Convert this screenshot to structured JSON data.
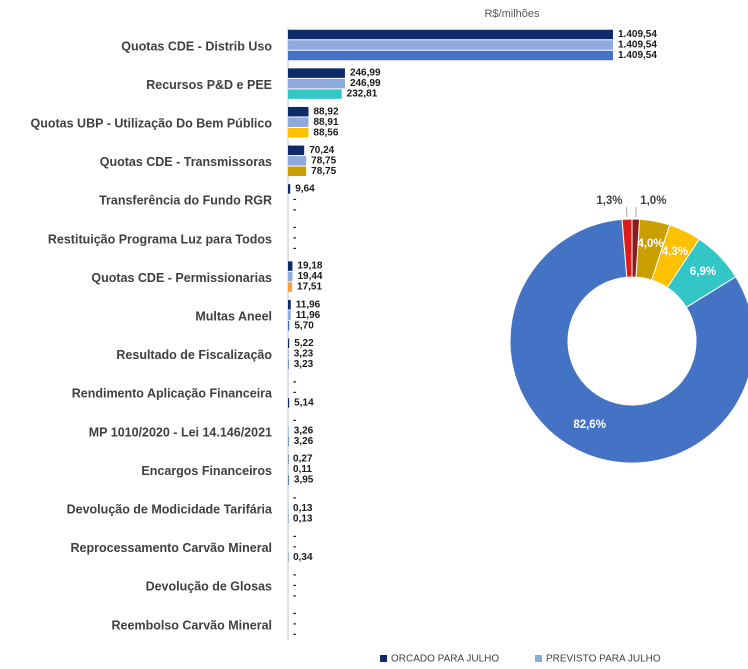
{
  "chart_data": [
    {
      "type": "bar",
      "orientation": "horizontal",
      "title": "R$/milhões",
      "categories": [
        "Quotas CDE - Distrib Uso",
        "Recursos P&D e PEE",
        "Quotas UBP - Utilização Do Bem Público",
        "Quotas CDE - Transmissoras",
        "Transferência do Fundo RGR",
        "Restituição Programa Luz para Todos",
        "Quotas CDE - Permissionarias",
        "Multas Aneel",
        "Resultado de Fiscalização",
        "Rendimento Aplicação Financeira",
        "MP 1010/2020 - Lei 14.146/2021",
        "Encargos Financeiros",
        "Devolução de Modicidade Tarifária",
        "Reprocessamento Carvão Mineral",
        "Devolução de Glosas",
        "Reembolso Carvão Mineral"
      ],
      "series": [
        {
          "name": "ORCADO PARA JULHO",
          "color": "#0e2a6b",
          "values": [
            1409.54,
            246.99,
            88.92,
            70.24,
            9.64,
            null,
            19.18,
            11.96,
            5.22,
            null,
            null,
            0.27,
            null,
            null,
            null,
            null
          ],
          "value_labels": [
            "1.409,54",
            "246,99",
            "88,92",
            "70,24",
            "9,64",
            "-",
            "19,18",
            "11,96",
            "5,22",
            "-",
            "-",
            "0,27",
            "-",
            "-",
            "-",
            "-"
          ]
        },
        {
          "name": "PREVISTO PARA JULHO",
          "color": "#8faadc",
          "values": [
            1409.54,
            246.99,
            88.91,
            78.75,
            null,
            null,
            19.44,
            11.96,
            3.23,
            null,
            3.26,
            0.11,
            0.13,
            null,
            null,
            null
          ],
          "value_labels": [
            "1.409,54",
            "246,99",
            "88,91",
            "78,75",
            "-",
            "-",
            "19,44",
            "11,96",
            "3,23",
            "-",
            "3,26",
            "0,11",
            "0,13",
            "-",
            "-",
            "-"
          ]
        },
        {
          "colors": [
            "#4472c4",
            "#33c6c6",
            "#ffc000",
            "#c9a000",
            "#4472c4",
            "#4472c4",
            "#f4a23c",
            "#4472c4",
            "#4472c4",
            "#0e2a6b",
            "#4472c4",
            "#4472c4",
            "#4472c4",
            "#4472c4",
            "#4472c4",
            "#4472c4"
          ],
          "values": [
            1409.54,
            232.81,
            88.56,
            78.75,
            null,
            null,
            17.51,
            5.7,
            3.23,
            5.14,
            3.26,
            3.95,
            0.13,
            0.34,
            null,
            null
          ],
          "value_labels": [
            "1.409,54",
            "232,81",
            "88,56",
            "78,75",
            "-",
            "-",
            "17,51",
            "5,70",
            "3,23",
            "5,14",
            "3,26",
            "3,95",
            "0,13",
            "0,34",
            "-",
            "-"
          ]
        }
      ]
    },
    {
      "type": "pie",
      "donut": true,
      "values": [
        1.0,
        4.0,
        4.3,
        6.9,
        82.6,
        1.3
      ],
      "value_labels": [
        "1,0%",
        "4,0%",
        "4,3%",
        "6,9%",
        "82,6%",
        "1,3%"
      ],
      "colors": [
        "#8b1a1a",
        "#c9a000",
        "#ffc000",
        "#33c6c6",
        "#4472c4",
        "#e01b1b"
      ]
    }
  ]
}
